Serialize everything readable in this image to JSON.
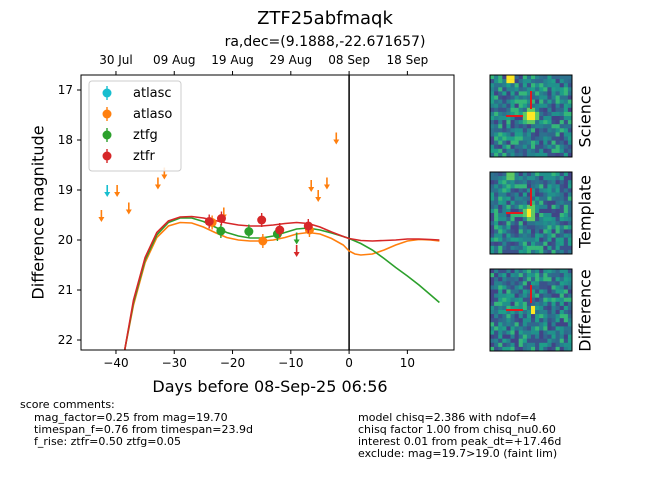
{
  "title": "ZTF25abfmaqk",
  "subtitle": "ra,dec=(9.1888,-22.671657)",
  "score_comments": {
    "header": "score comments:",
    "lines": [
      "mag_factor=0.25 from mag=19.70",
      "timespan_f=0.76 from timespan=23.9d",
      "f_rise: ztfr=0.50 ztfg=0.05"
    ]
  },
  "model_comments": [
    "model chisq=2.386 with ndof=4",
    "chisq factor 1.00 from chisq_nu0.60",
    "interest 0.01 from peak_dt=+17.46d",
    "exclude: mag=19.7>19.0 (faint lim)"
  ],
  "cutouts": [
    "Science",
    "Template",
    "Difference"
  ],
  "colors": {
    "atlasc": "#17becf",
    "atlaso": "#ff7f0e",
    "ztfg": "#2ca02c",
    "ztfr": "#d62728",
    "axis": "#000000"
  },
  "chart_data": {
    "type": "scatter",
    "xlabel": "Days before 08-Sep-25 06:56",
    "ylabel": "Difference magnitude",
    "xlim": [
      -46,
      18
    ],
    "ylim": [
      22.2,
      16.7
    ],
    "y_inverted": true,
    "x_ticks": [
      -40,
      -30,
      -20,
      -10,
      0,
      10
    ],
    "y_ticks": [
      17,
      18,
      19,
      20,
      21,
      22
    ],
    "top_axis_ticks": [
      {
        "label": "30 Jul",
        "x": -40
      },
      {
        "label": "09 Aug",
        "x": -30
      },
      {
        "label": "19 Aug",
        "x": -20
      },
      {
        "label": "29 Aug",
        "x": -10
      },
      {
        "label": "08 Sep",
        "x": 0
      },
      {
        "label": "18 Sep",
        "x": 10
      }
    ],
    "vline_x": 0,
    "legend_position": "upper-left",
    "series": [
      {
        "name": "atlasc",
        "detections": [],
        "upper_limits": [
          [
            -41.5,
            19.0
          ]
        ]
      },
      {
        "name": "atlaso",
        "detections": [
          [
            -23.5,
            19.65
          ],
          [
            -14.8,
            20.02
          ],
          [
            -6.8,
            19.8
          ]
        ],
        "upper_limits": [
          [
            -42.5,
            19.5
          ],
          [
            -39.8,
            19.0
          ],
          [
            -37.8,
            19.35
          ],
          [
            -32.8,
            18.85
          ],
          [
            -31.7,
            18.65
          ],
          [
            -21.5,
            19.45
          ],
          [
            -6.5,
            18.9
          ],
          [
            -5.3,
            19.1
          ],
          [
            -3.8,
            18.85
          ],
          [
            -2.2,
            17.95
          ]
        ]
      },
      {
        "name": "ztfg",
        "detections": [
          [
            -22.0,
            19.82
          ],
          [
            -17.2,
            19.83
          ],
          [
            -12.3,
            19.88
          ]
        ],
        "upper_limits": [
          [
            -9.0,
            19.95
          ]
        ]
      },
      {
        "name": "ztfr",
        "detections": [
          [
            -24.0,
            19.63
          ],
          [
            -21.9,
            19.57
          ],
          [
            -15.0,
            19.6
          ],
          [
            -11.9,
            19.8
          ],
          [
            -7.0,
            19.72
          ]
        ],
        "upper_limits": [
          [
            -9.0,
            20.2
          ]
        ]
      }
    ],
    "model_curves": [
      {
        "name": "atlaso",
        "points": [
          [
            -38.5,
            22.2
          ],
          [
            -37,
            21.3
          ],
          [
            -35,
            20.45
          ],
          [
            -33,
            19.95
          ],
          [
            -31,
            19.72
          ],
          [
            -29,
            19.65
          ],
          [
            -27,
            19.66
          ],
          [
            -25,
            19.74
          ],
          [
            -23,
            19.85
          ],
          [
            -21,
            19.95
          ],
          [
            -19,
            20.0
          ],
          [
            -17,
            20.02
          ],
          [
            -15,
            20.02
          ],
          [
            -13,
            20.0
          ],
          [
            -11,
            19.95
          ],
          [
            -9,
            19.88
          ],
          [
            -7,
            19.85
          ],
          [
            -5,
            19.88
          ],
          [
            -3,
            19.97
          ],
          [
            -1,
            20.1
          ],
          [
            0,
            20.22
          ],
          [
            1,
            20.28
          ],
          [
            2,
            20.3
          ],
          [
            4,
            20.28
          ],
          [
            6,
            20.2
          ],
          [
            8,
            20.1
          ],
          [
            10,
            20.02
          ],
          [
            12,
            19.99
          ],
          [
            14,
            20.0
          ],
          [
            15.5,
            20.02
          ]
        ]
      },
      {
        "name": "ztfg",
        "points": [
          [
            -38.5,
            22.2
          ],
          [
            -37,
            21.25
          ],
          [
            -35,
            20.4
          ],
          [
            -33,
            19.9
          ],
          [
            -31,
            19.65
          ],
          [
            -29,
            19.56
          ],
          [
            -27,
            19.56
          ],
          [
            -25,
            19.63
          ],
          [
            -23,
            19.74
          ],
          [
            -21,
            19.85
          ],
          [
            -19,
            19.92
          ],
          [
            -17,
            19.96
          ],
          [
            -15,
            19.96
          ],
          [
            -13,
            19.92
          ],
          [
            -11,
            19.85
          ],
          [
            -9,
            19.78
          ],
          [
            -7,
            19.76
          ],
          [
            -5,
            19.8
          ],
          [
            -3,
            19.86
          ],
          [
            -1,
            19.93
          ],
          [
            0,
            19.97
          ],
          [
            2,
            20.07
          ],
          [
            4,
            20.2
          ],
          [
            6,
            20.37
          ],
          [
            8,
            20.55
          ],
          [
            10,
            20.72
          ],
          [
            12,
            20.9
          ],
          [
            14,
            21.1
          ],
          [
            15.5,
            21.25
          ]
        ]
      },
      {
        "name": "ztfr",
        "points": [
          [
            -38.5,
            22.2
          ],
          [
            -37,
            21.2
          ],
          [
            -35,
            20.35
          ],
          [
            -33,
            19.85
          ],
          [
            -31,
            19.62
          ],
          [
            -29,
            19.54
          ],
          [
            -27,
            19.53
          ],
          [
            -25,
            19.56
          ],
          [
            -23,
            19.61
          ],
          [
            -21,
            19.66
          ],
          [
            -19,
            19.7
          ],
          [
            -17,
            19.72
          ],
          [
            -15,
            19.72
          ],
          [
            -13,
            19.7
          ],
          [
            -11,
            19.67
          ],
          [
            -9,
            19.65
          ],
          [
            -7,
            19.67
          ],
          [
            -5,
            19.74
          ],
          [
            -3,
            19.84
          ],
          [
            -1,
            19.93
          ],
          [
            0,
            19.97
          ],
          [
            2,
            20.01
          ],
          [
            4,
            20.02
          ],
          [
            6,
            20.01
          ],
          [
            8,
            20.0
          ],
          [
            10,
            19.98
          ],
          [
            12,
            19.98
          ],
          [
            14,
            19.99
          ],
          [
            15.5,
            20.0
          ]
        ]
      }
    ]
  }
}
